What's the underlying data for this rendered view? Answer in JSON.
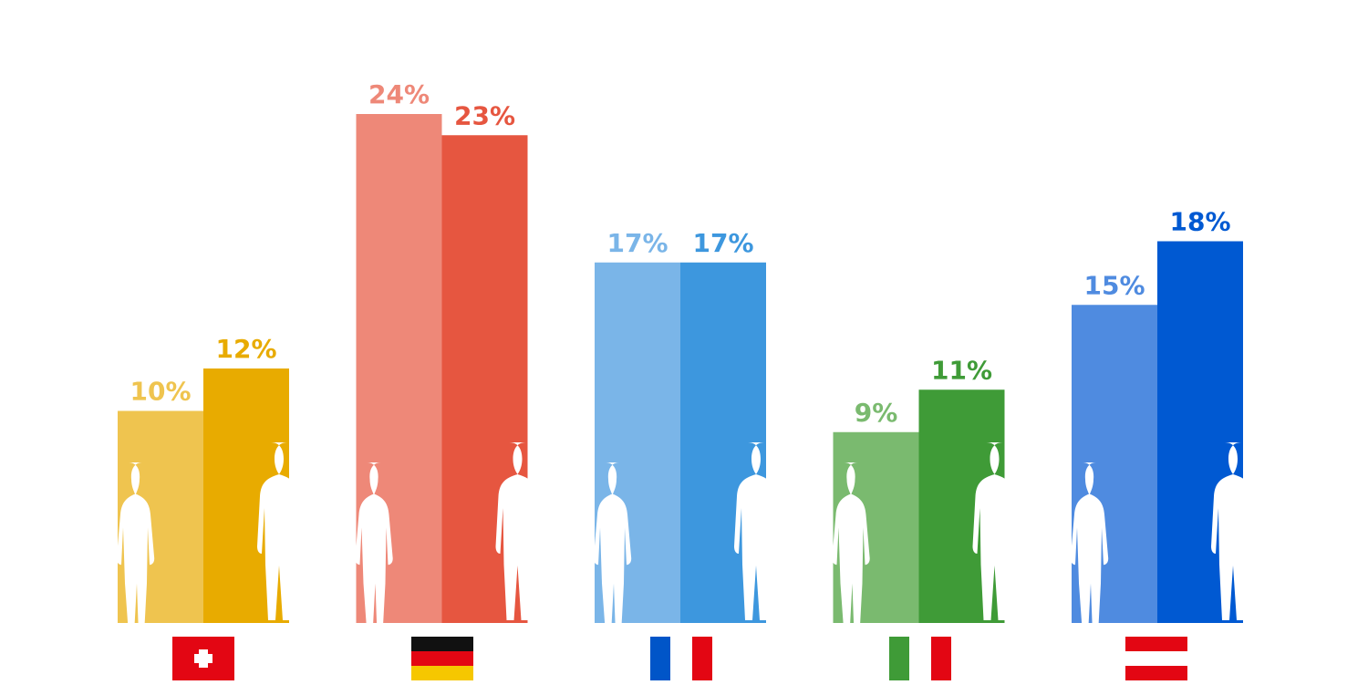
{
  "chart_data": {
    "type": "bar",
    "categories": [
      null,
      null,
      null,
      null,
      null
    ],
    "series": [
      {
        "colors": [
          "#efc44f",
          "#ee8878",
          "#7ab5e8",
          "#7aba6f",
          "#4f8be0"
        ],
        "values": [
          10,
          24,
          17,
          9,
          15
        ],
        "value_labels": [
          "10%",
          "24%",
          "17%",
          "9%",
          "15%"
        ]
      },
      {
        "colors": [
          "#e8ab00",
          "#e65640",
          "#3d97de",
          "#3f9b37",
          "#0059d2"
        ],
        "values": [
          12,
          23,
          17,
          11,
          18
        ],
        "value_labels": [
          "12%",
          "23%",
          "17%",
          "11%",
          "18%"
        ]
      }
    ]
  }
}
